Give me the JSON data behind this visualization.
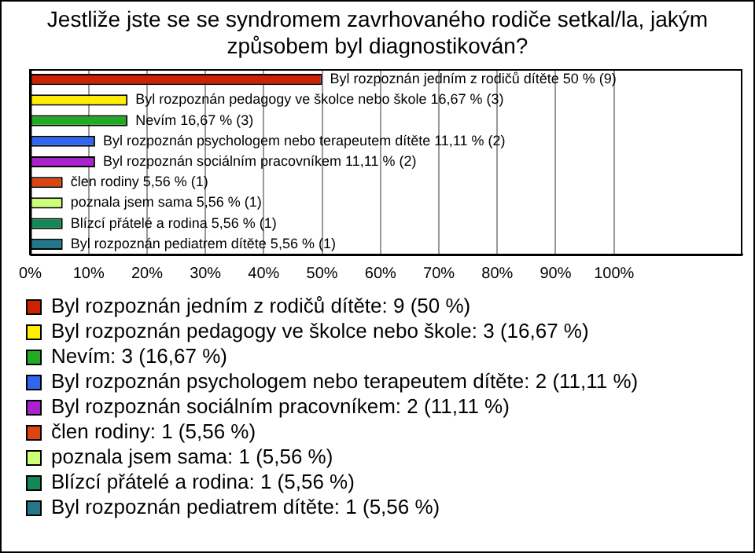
{
  "chart_data": {
    "type": "bar",
    "orientation": "horizontal",
    "title": "Jestliže jste se se syndromem zavrhovaného rodiče setkal/la, jakým způsobem byl diagnostikován?",
    "categories": [
      null,
      null,
      null,
      null,
      null,
      null,
      null,
      null,
      null
    ],
    "series": [
      {
        "name": "Byl rozpoznán jedním z rodičů dítěte: 9 (50 %)",
        "color": "#cc2200",
        "values": [
          50,
          null,
          null,
          null,
          null,
          null,
          null,
          null,
          null
        ],
        "value_labels": [
          "Byl rozpoznán jedním z rodičů dítěte 50 % (9)",
          null,
          null,
          null,
          null,
          null,
          null,
          null,
          null
        ]
      },
      {
        "name": "Byl rozpoznán pedagogy ve školce nebo škole: 3 (16,67 %)",
        "color": "#ffee00",
        "values": [
          null,
          16.67,
          null,
          null,
          null,
          null,
          null,
          null,
          null
        ],
        "value_labels": [
          null,
          "Byl rozpoznán pedagogy ve školce nebo škole 16,67 % (3)",
          null,
          null,
          null,
          null,
          null,
          null,
          null
        ]
      },
      {
        "name": "Nevím: 3 (16,67 %)",
        "color": "#22aa22",
        "values": [
          null,
          null,
          16.67,
          null,
          null,
          null,
          null,
          null,
          null
        ],
        "value_labels": [
          null,
          null,
          "Nevím 16,67 % (3)",
          null,
          null,
          null,
          null,
          null,
          null
        ]
      },
      {
        "name": "Byl rozpoznán psychologem nebo terapeutem dítěte: 2 (11,11 %)",
        "color": "#3366ee",
        "values": [
          null,
          null,
          null,
          11.11,
          null,
          null,
          null,
          null,
          null
        ],
        "value_labels": [
          null,
          null,
          null,
          "Byl rozpoznán psychologem nebo terapeutem dítěte 11,11 % (2)",
          null,
          null,
          null,
          null,
          null
        ]
      },
      {
        "name": "Byl rozpoznán sociálním pracovníkem: 2 (11,11 %)",
        "color": "#aa22cc",
        "values": [
          null,
          null,
          null,
          null,
          11.11,
          null,
          null,
          null,
          null
        ],
        "value_labels": [
          null,
          null,
          null,
          null,
          "Byl rozpoznán sociálním pracovníkem 11,11 % (2)",
          null,
          null,
          null,
          null
        ]
      },
      {
        "name": "člen rodiny: 1 (5,56 %)",
        "color": "#dd4411",
        "values": [
          null,
          null,
          null,
          null,
          null,
          5.56,
          null,
          null,
          null
        ],
        "value_labels": [
          null,
          null,
          null,
          null,
          null,
          "člen rodiny 5,56 % (1)",
          null,
          null,
          null
        ]
      },
      {
        "name": "poznala jsem sama: 1 (5,56 %)",
        "color": "#ccff77",
        "values": [
          null,
          null,
          null,
          null,
          null,
          null,
          5.56,
          null,
          null
        ],
        "value_labels": [
          null,
          null,
          null,
          null,
          null,
          null,
          "poznala jsem sama 5,56 % (1)",
          null,
          null
        ]
      },
      {
        "name": "Blízcí přátelé a rodina: 1 (5,56 %)",
        "color": "#118855",
        "values": [
          null,
          null,
          null,
          null,
          null,
          null,
          null,
          5.56,
          null
        ],
        "value_labels": [
          null,
          null,
          null,
          null,
          null,
          null,
          null,
          "Blízcí přátelé a rodina 5,56 % (1)",
          null
        ]
      },
      {
        "name": "Byl rozpoznán pediatrem dítěte: 1 (5,56 %)",
        "color": "#227788",
        "values": [
          null,
          null,
          null,
          null,
          null,
          null,
          null,
          null,
          5.56
        ],
        "value_labels": [
          null,
          null,
          null,
          null,
          null,
          null,
          null,
          null,
          "Byl rozpoznán pediatrem dítěte 5,56 % (1)"
        ]
      }
    ],
    "xlim": [
      0,
      122
    ],
    "xticks": [
      {
        "value": 0,
        "label": "0%"
      },
      {
        "value": 10,
        "label": "10%"
      },
      {
        "value": 20,
        "label": "20%"
      },
      {
        "value": 30,
        "label": "30%"
      },
      {
        "value": 40,
        "label": "40%"
      },
      {
        "value": 50,
        "label": "50%"
      },
      {
        "value": 60,
        "label": "60%"
      },
      {
        "value": 70,
        "label": "70%"
      },
      {
        "value": 80,
        "label": "80%"
      },
      {
        "value": 90,
        "label": "90%"
      },
      {
        "value": 100,
        "label": "100%"
      }
    ],
    "grid": "x",
    "legend": "bottom",
    "tick_labels": "x"
  }
}
